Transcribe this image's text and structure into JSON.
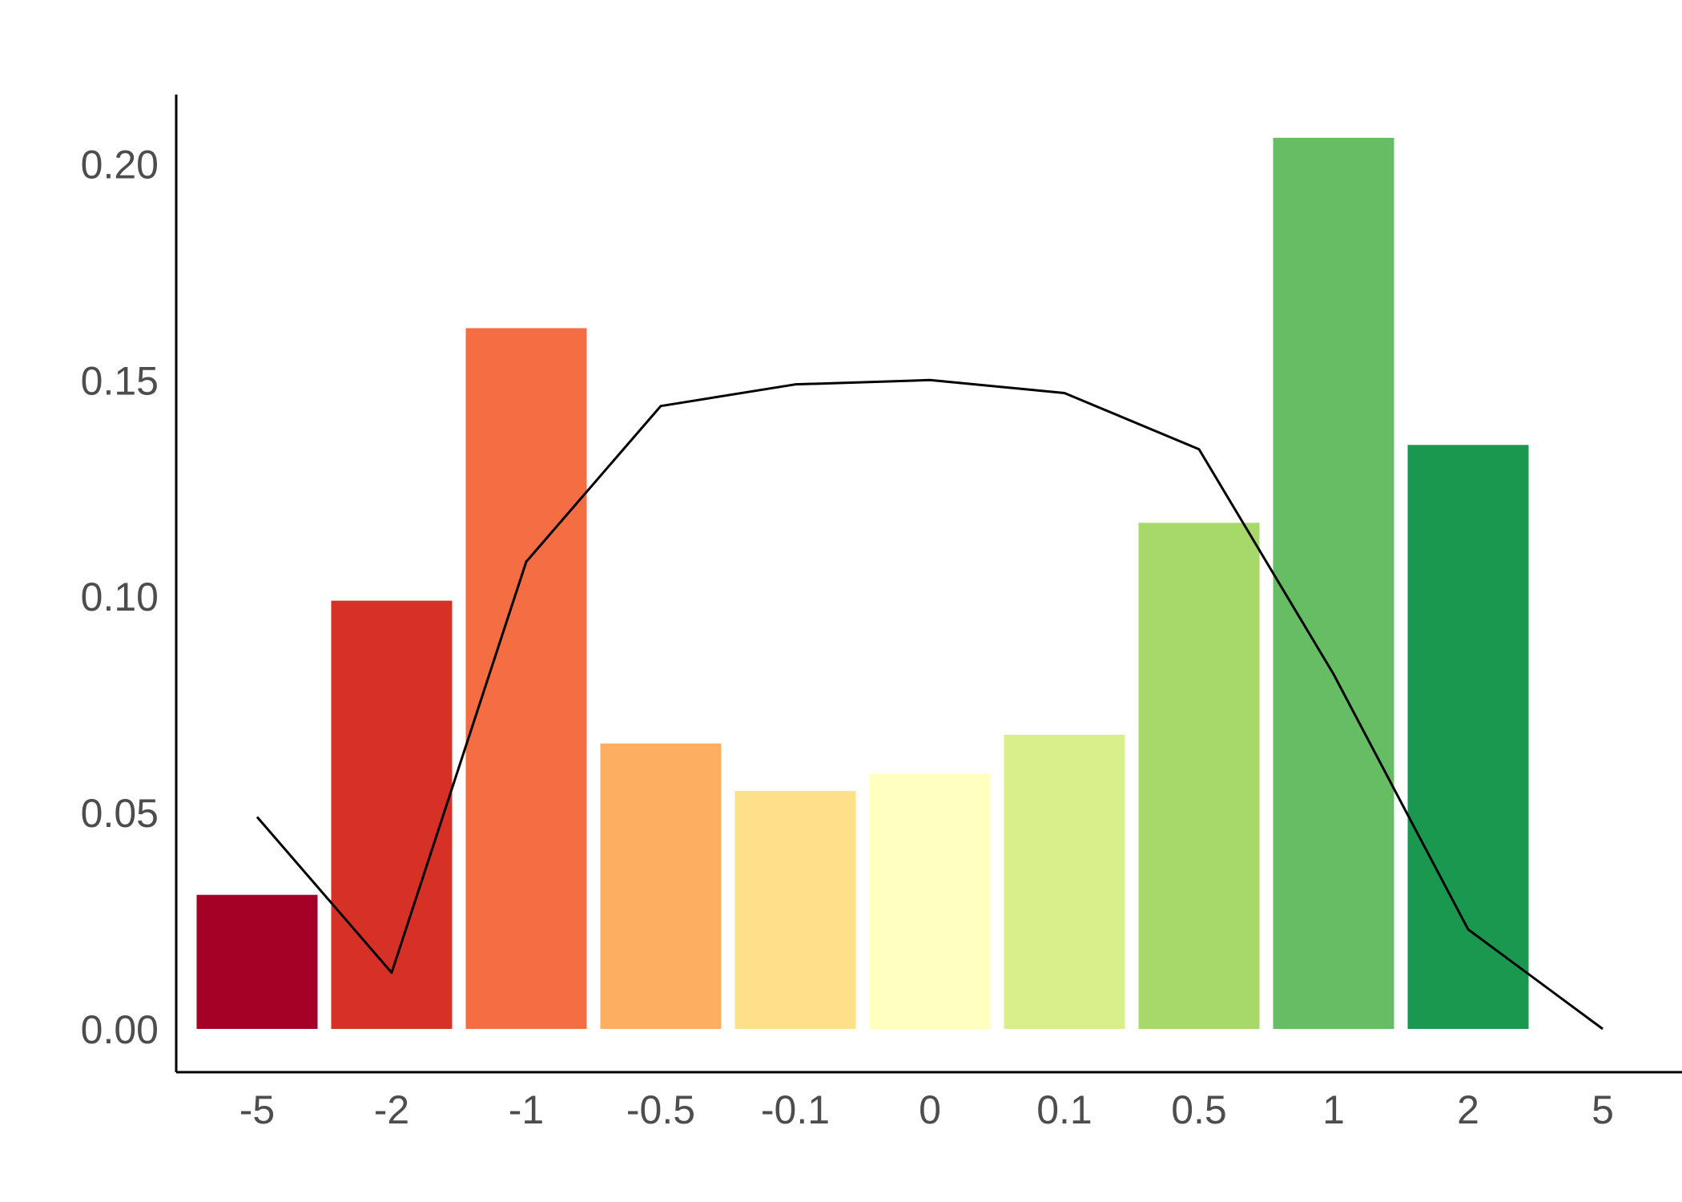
{
  "chart_data": {
    "type": "bar",
    "title": "",
    "xlabel": "",
    "ylabel": "",
    "categories": [
      "-5",
      "-2",
      "-1",
      "-0.5",
      "-0.1",
      "0",
      "0.1",
      "0.5",
      "1",
      "2",
      "5"
    ],
    "bars": {
      "values": [
        0.031,
        0.099,
        0.162,
        0.066,
        0.055,
        0.059,
        0.068,
        0.117,
        0.206,
        0.135,
        null
      ],
      "colors": [
        "#a50026",
        "#d73027",
        "#f46d43",
        "#fdae61",
        "#fee08b",
        "#ffffbf",
        "#d9ef8b",
        "#a6d96a",
        "#66bd63",
        "#1a9850",
        null
      ]
    },
    "line": {
      "values": [
        0.049,
        0.013,
        0.108,
        0.144,
        0.149,
        0.15,
        0.147,
        0.134,
        0.082,
        0.023,
        0.0
      ],
      "color": "#000000"
    },
    "ylim": [
      -0.01,
      0.216
    ],
    "yticks": [
      0.0,
      0.05,
      0.1,
      0.15,
      0.2
    ],
    "ytick_labels": [
      "0.00",
      "0.05",
      "0.10",
      "0.15",
      "0.20"
    ],
    "grid": false,
    "legend": "none"
  }
}
